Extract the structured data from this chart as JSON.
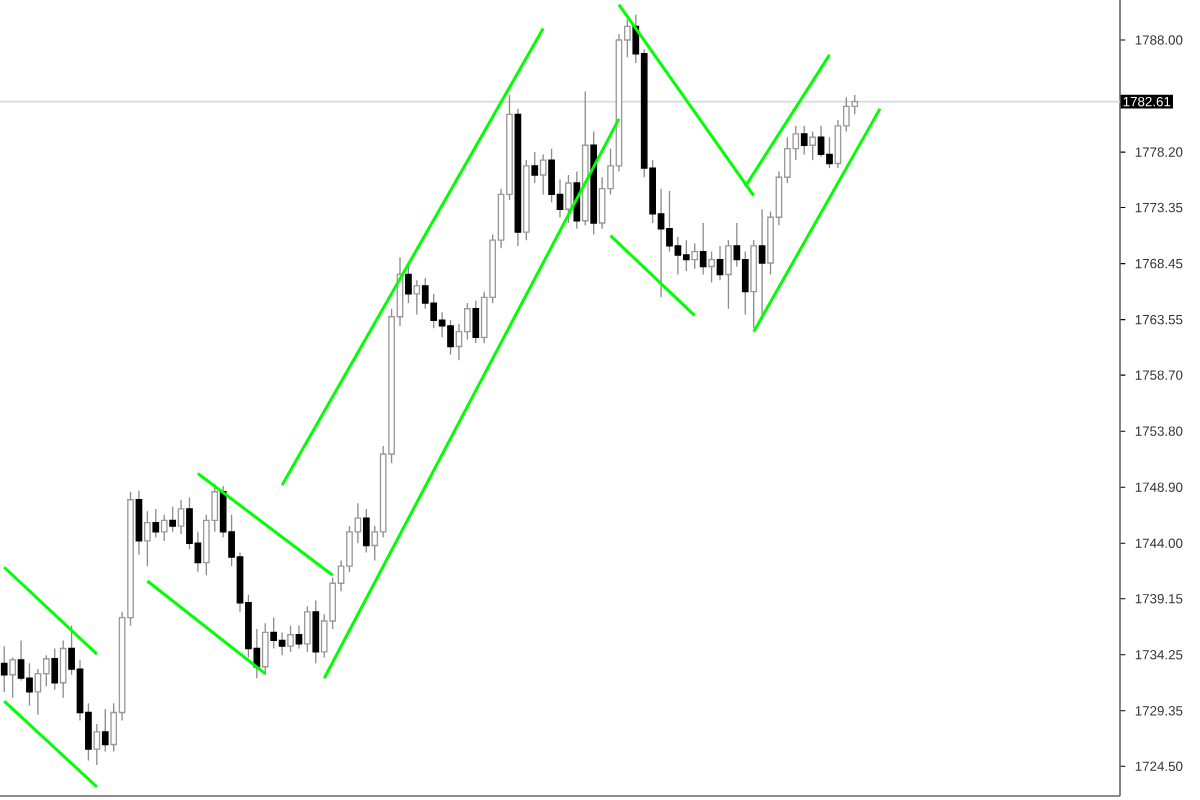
{
  "chart_data": {
    "type": "candlestick",
    "categories": [
      null,
      null,
      null,
      null,
      null,
      null,
      null,
      null,
      null,
      null,
      null,
      null,
      null,
      null,
      null,
      null,
      null,
      null,
      null,
      null,
      null,
      null,
      null,
      null,
      null,
      null,
      null,
      null,
      null,
      null,
      null,
      null,
      null,
      null,
      null,
      null,
      null,
      null,
      null,
      null,
      null,
      null,
      null,
      null,
      null,
      null,
      null,
      null,
      null,
      null,
      null,
      null,
      null,
      null,
      null,
      null,
      null,
      null,
      null,
      null,
      null,
      null,
      null,
      null,
      null,
      null,
      null,
      null,
      null,
      null,
      null,
      null,
      null,
      null,
      null,
      null,
      null,
      null,
      null,
      null,
      null,
      null,
      null,
      null,
      null,
      null,
      null,
      null,
      null,
      null,
      null,
      null,
      null,
      null,
      null,
      null,
      null,
      null,
      null,
      null,
      null,
      null,
      null,
      null,
      null,
      null,
      null,
      null,
      null,
      null,
      null,
      null,
      null,
      null,
      null,
      null,
      null,
      null,
      null,
      null,
      null,
      null,
      null,
      null,
      null,
      null,
      null,
      null,
      null,
      null,
      null,
      null,
      null
    ],
    "ohlc": [
      [
        1733.5,
        1735.0,
        1731.0,
        1732.5
      ],
      [
        1732.5,
        1734.0,
        1730.5,
        1733.8
      ],
      [
        1733.8,
        1735.5,
        1732.0,
        1732.2
      ],
      [
        1732.2,
        1733.5,
        1729.8,
        1731.0
      ],
      [
        1731.0,
        1733.0,
        1729.0,
        1732.6
      ],
      [
        1732.6,
        1734.2,
        1731.5,
        1733.9
      ],
      [
        1733.9,
        1734.8,
        1731.2,
        1731.8
      ],
      [
        1731.8,
        1735.5,
        1730.5,
        1734.8
      ],
      [
        1734.8,
        1736.8,
        1732.5,
        1733.0
      ],
      [
        1733.0,
        1733.8,
        1728.5,
        1729.2
      ],
      [
        1729.2,
        1730.0,
        1725.0,
        1726.0
      ],
      [
        1726.0,
        1728.2,
        1724.6,
        1727.5
      ],
      [
        1727.5,
        1729.5,
        1725.8,
        1726.4
      ],
      [
        1726.4,
        1730.0,
        1725.8,
        1729.2
      ],
      [
        1729.2,
        1738.0,
        1728.5,
        1737.5
      ],
      [
        1737.5,
        1748.5,
        1736.8,
        1747.8
      ],
      [
        1747.8,
        1748.6,
        1743.0,
        1744.2
      ],
      [
        1744.2,
        1746.8,
        1742.0,
        1745.8
      ],
      [
        1745.8,
        1747.0,
        1744.5,
        1745.0
      ],
      [
        1745.0,
        1746.5,
        1744.2,
        1746.0
      ],
      [
        1746.0,
        1747.2,
        1745.0,
        1745.5
      ],
      [
        1745.5,
        1747.8,
        1744.8,
        1747.0
      ],
      [
        1747.0,
        1748.0,
        1743.5,
        1744.0
      ],
      [
        1744.0,
        1745.0,
        1741.5,
        1742.3
      ],
      [
        1742.3,
        1746.5,
        1741.2,
        1746.0
      ],
      [
        1746.0,
        1749.2,
        1745.0,
        1748.5
      ],
      [
        1748.5,
        1749.0,
        1744.5,
        1745.0
      ],
      [
        1745.0,
        1746.5,
        1742.0,
        1742.8
      ],
      [
        1742.8,
        1743.2,
        1738.0,
        1738.8
      ],
      [
        1738.8,
        1739.5,
        1734.0,
        1734.8
      ],
      [
        1734.8,
        1736.5,
        1732.2,
        1733.2
      ],
      [
        1733.2,
        1737.0,
        1732.5,
        1736.2
      ],
      [
        1736.2,
        1737.5,
        1734.8,
        1735.5
      ],
      [
        1735.5,
        1736.2,
        1734.2,
        1735.0
      ],
      [
        1735.0,
        1736.8,
        1734.5,
        1736.0
      ],
      [
        1736.0,
        1736.8,
        1734.8,
        1735.2
      ],
      [
        1735.2,
        1738.5,
        1734.5,
        1738.0
      ],
      [
        1738.0,
        1739.0,
        1733.5,
        1734.5
      ],
      [
        1734.5,
        1737.8,
        1734.0,
        1737.2
      ],
      [
        1737.2,
        1741.0,
        1736.5,
        1740.5
      ],
      [
        1740.5,
        1742.5,
        1739.8,
        1742.0
      ],
      [
        1742.0,
        1745.5,
        1741.5,
        1745.0
      ],
      [
        1745.0,
        1747.5,
        1744.0,
        1746.2
      ],
      [
        1746.2,
        1747.0,
        1743.2,
        1743.8
      ],
      [
        1743.8,
        1745.5,
        1742.5,
        1745.0
      ],
      [
        1745.0,
        1752.5,
        1744.5,
        1751.8
      ],
      [
        1751.8,
        1764.5,
        1751.0,
        1763.8
      ],
      [
        1763.8,
        1769.0,
        1763.0,
        1767.5
      ],
      [
        1767.5,
        1768.5,
        1765.0,
        1765.8
      ],
      [
        1765.8,
        1767.0,
        1764.0,
        1766.5
      ],
      [
        1766.5,
        1767.2,
        1764.5,
        1765.0
      ],
      [
        1765.0,
        1765.8,
        1762.8,
        1763.5
      ],
      [
        1763.5,
        1764.2,
        1762.0,
        1763.0
      ],
      [
        1763.0,
        1763.5,
        1760.5,
        1761.2
      ],
      [
        1761.2,
        1763.2,
        1760.0,
        1762.5
      ],
      [
        1762.5,
        1765.0,
        1761.8,
        1764.5
      ],
      [
        1764.5,
        1765.2,
        1761.5,
        1762.0
      ],
      [
        1762.0,
        1766.0,
        1761.5,
        1765.5
      ],
      [
        1765.5,
        1771.0,
        1765.0,
        1770.5
      ],
      [
        1770.5,
        1775.0,
        1769.8,
        1774.5
      ],
      [
        1774.5,
        1783.2,
        1774.0,
        1781.5
      ],
      [
        1781.5,
        1782.0,
        1770.0,
        1771.2
      ],
      [
        1771.2,
        1777.5,
        1770.5,
        1777.0
      ],
      [
        1777.0,
        1778.2,
        1775.5,
        1776.2
      ],
      [
        1776.2,
        1778.0,
        1774.5,
        1777.5
      ],
      [
        1777.5,
        1778.5,
        1773.8,
        1774.5
      ],
      [
        1774.5,
        1775.8,
        1772.5,
        1773.2
      ],
      [
        1773.2,
        1776.2,
        1772.0,
        1775.5
      ],
      [
        1775.5,
        1776.5,
        1771.5,
        1772.2
      ],
      [
        1772.2,
        1783.5,
        1771.8,
        1778.8
      ],
      [
        1778.8,
        1780.0,
        1771.0,
        1772.0
      ],
      [
        1772.0,
        1776.0,
        1771.5,
        1775.0
      ],
      [
        1775.0,
        1778.5,
        1774.5,
        1777.0
      ],
      [
        1777.0,
        1788.5,
        1776.5,
        1788.0
      ],
      [
        1788.0,
        1789.8,
        1786.5,
        1789.2
      ],
      [
        1789.2,
        1790.2,
        1786.0,
        1786.8
      ],
      [
        1786.8,
        1787.2,
        1776.0,
        1776.8
      ],
      [
        1776.8,
        1777.5,
        1772.0,
        1772.8
      ],
      [
        1772.8,
        1775.0,
        1765.5,
        1771.5
      ],
      [
        1771.5,
        1774.8,
        1769.5,
        1770.0
      ],
      [
        1770.0,
        1770.8,
        1767.5,
        1769.2
      ],
      [
        1769.2,
        1770.5,
        1767.8,
        1768.8
      ],
      [
        1768.8,
        1770.2,
        1768.0,
        1769.5
      ],
      [
        1769.5,
        1772.0,
        1767.5,
        1768.2
      ],
      [
        1768.2,
        1769.5,
        1766.8,
        1768.8
      ],
      [
        1768.8,
        1770.0,
        1767.0,
        1767.5
      ],
      [
        1767.5,
        1770.5,
        1764.5,
        1770.0
      ],
      [
        1770.0,
        1772.0,
        1768.2,
        1768.8
      ],
      [
        1768.8,
        1769.5,
        1764.0,
        1766.0
      ],
      [
        1766.0,
        1770.5,
        1762.8,
        1770.0
      ],
      [
        1770.0,
        1773.2,
        1763.5,
        1768.5
      ],
      [
        1768.5,
        1773.0,
        1767.5,
        1772.5
      ],
      [
        1772.5,
        1776.5,
        1771.8,
        1776.0
      ],
      [
        1776.0,
        1779.5,
        1775.5,
        1778.5
      ],
      [
        1778.5,
        1780.5,
        1777.5,
        1779.8
      ],
      [
        1779.8,
        1780.5,
        1778.0,
        1778.8
      ],
      [
        1778.8,
        1780.0,
        1777.5,
        1779.5
      ],
      [
        1779.5,
        1780.5,
        1777.8,
        1778.0
      ],
      [
        1778.0,
        1779.5,
        1776.8,
        1777.2
      ],
      [
        1777.2,
        1781.0,
        1776.8,
        1780.5
      ],
      [
        1780.5,
        1783.0,
        1780.0,
        1782.2
      ],
      [
        1782.2,
        1783.2,
        1781.5,
        1782.61
      ],
      null,
      null,
      null,
      null,
      null,
      null,
      null,
      null,
      null,
      null,
      null,
      null,
      null,
      null,
      null,
      null,
      null,
      null,
      null,
      null,
      null,
      null,
      null,
      null,
      null,
      null,
      null,
      null,
      null,
      null,
      null
    ],
    "series": [
      {
        "type": "line",
        "color": "#00ff00",
        "values": [
          1741.9,
          null,
          null,
          null,
          null,
          null,
          null,
          null,
          null,
          null,
          null,
          1734.3,
          null,
          null,
          null,
          null,
          null,
          null,
          null,
          null,
          null,
          null,
          null,
          null,
          null,
          null,
          null,
          null,
          null,
          null,
          null,
          null,
          null,
          null,
          null,
          null,
          null,
          null,
          null,
          null,
          null,
          null,
          null,
          null,
          null,
          null,
          null,
          null,
          null,
          null,
          null,
          null,
          null,
          null,
          null,
          null,
          null,
          null,
          null,
          null,
          null,
          null,
          null,
          null,
          null,
          null,
          null,
          null,
          null,
          null,
          null,
          null,
          null,
          null,
          null,
          null,
          null,
          null,
          null,
          null,
          null,
          null,
          null,
          null,
          null,
          null,
          null,
          null,
          null,
          null,
          null,
          null,
          null,
          null,
          null,
          null,
          null,
          null,
          null,
          null,
          null,
          null,
          null,
          null,
          null,
          null,
          null,
          null,
          null,
          null,
          null,
          null,
          null,
          null,
          null,
          null,
          null,
          null,
          null,
          null,
          null,
          null,
          null,
          null,
          null,
          null,
          null,
          null,
          null,
          null,
          null,
          null,
          null
        ]
      },
      {
        "type": "line",
        "color": "#00ff00",
        "values": [
          1730.2,
          null,
          null,
          null,
          null,
          null,
          null,
          null,
          null,
          null,
          null,
          1722.7,
          null,
          null,
          null,
          null,
          null,
          null,
          null,
          null,
          null,
          null,
          null,
          null,
          null,
          null,
          null,
          null,
          null,
          null,
          null,
          null,
          null,
          null,
          null,
          null,
          null,
          null,
          null,
          null,
          null,
          null,
          null,
          null,
          null,
          null,
          null,
          null,
          null,
          null,
          null,
          null,
          null,
          null,
          null,
          null,
          null,
          null,
          null,
          null,
          null,
          null,
          null,
          null,
          null,
          null,
          null,
          null,
          null,
          null,
          null,
          null,
          null,
          null,
          null,
          null,
          null,
          null,
          null,
          null,
          null,
          null,
          null,
          null,
          null,
          null,
          null,
          null,
          null,
          null,
          null,
          null,
          null,
          null,
          null,
          null,
          null,
          null,
          null,
          null,
          null,
          null,
          null,
          null,
          null,
          null,
          null,
          null,
          null,
          null,
          null,
          null,
          null,
          null,
          null,
          null,
          null,
          null,
          null,
          null,
          null,
          null,
          null,
          null,
          null,
          null,
          null,
          null,
          null,
          null,
          null,
          null,
          null
        ]
      },
      {
        "type": "line",
        "color": "#00ff00",
        "values": [
          null,
          null,
          null,
          null,
          null,
          null,
          null,
          null,
          null,
          null,
          null,
          null,
          null,
          null,
          null,
          null,
          null,
          null,
          null,
          null,
          null,
          null,
          null,
          1750.1,
          null,
          null,
          null,
          null,
          null,
          null,
          null,
          null,
          null,
          null,
          null,
          null,
          null,
          null,
          null,
          1741.2,
          null,
          null,
          null,
          null,
          null,
          null,
          null,
          null,
          null,
          null,
          null,
          null,
          null,
          null,
          null,
          null,
          null,
          null,
          null,
          null,
          null,
          null,
          null,
          null,
          null,
          null,
          null,
          null,
          null,
          null,
          null,
          null,
          null,
          null,
          null,
          null,
          null,
          null,
          null,
          null,
          null,
          null,
          null,
          null,
          null,
          null,
          null,
          null,
          null,
          null,
          null,
          null,
          null,
          null,
          null,
          null,
          null,
          null,
          null,
          null,
          null,
          null,
          null,
          null,
          null,
          null,
          null,
          null,
          null,
          null,
          null,
          null,
          null,
          null,
          null,
          null,
          null,
          null,
          null,
          null,
          null,
          null,
          null,
          null,
          null,
          null,
          null,
          null,
          null,
          null,
          null,
          null,
          null
        ]
      },
      {
        "type": "line",
        "color": "#00ff00",
        "values": [
          null,
          null,
          null,
          null,
          null,
          null,
          null,
          null,
          null,
          null,
          null,
          null,
          null,
          null,
          null,
          null,
          null,
          1740.7,
          null,
          null,
          null,
          null,
          null,
          null,
          null,
          null,
          null,
          null,
          null,
          null,
          null,
          1732.6,
          null,
          null,
          null,
          null,
          null,
          null,
          null,
          null,
          null,
          null,
          null,
          null,
          null,
          null,
          null,
          null,
          null,
          null,
          null,
          null,
          null,
          null,
          null,
          null,
          null,
          null,
          null,
          null,
          null,
          null,
          null,
          null,
          null,
          null,
          null,
          null,
          null,
          null,
          null,
          null,
          null,
          null,
          null,
          null,
          null,
          null,
          null,
          null,
          null,
          null,
          null,
          null,
          null,
          null,
          null,
          null,
          null,
          null,
          null,
          null,
          null,
          null,
          null,
          null,
          null,
          null,
          null,
          null,
          null,
          null,
          null,
          null,
          null,
          null,
          null,
          null,
          null,
          null,
          null,
          null,
          null,
          null,
          null,
          null,
          null,
          null,
          null,
          null,
          null,
          null,
          null,
          null,
          null,
          null,
          null,
          null,
          null,
          null,
          null,
          null,
          null
        ]
      },
      {
        "type": "line",
        "color": "#00ff00",
        "values": [
          null,
          null,
          null,
          null,
          null,
          null,
          null,
          null,
          null,
          null,
          null,
          null,
          null,
          null,
          null,
          null,
          null,
          null,
          null,
          null,
          null,
          null,
          null,
          null,
          null,
          null,
          null,
          null,
          null,
          null,
          null,
          null,
          null,
          1749.1,
          null,
          null,
          null,
          null,
          null,
          null,
          null,
          null,
          null,
          null,
          null,
          null,
          null,
          null,
          null,
          null,
          null,
          null,
          null,
          null,
          null,
          null,
          null,
          null,
          null,
          null,
          null,
          null,
          null,
          null,
          1789.0,
          null,
          null,
          null,
          null,
          null,
          null,
          null,
          null,
          null,
          null,
          null,
          null,
          null,
          null,
          null,
          null,
          null,
          null,
          null,
          null,
          null,
          null,
          null,
          null,
          null,
          null,
          null,
          null,
          null,
          null,
          null,
          null,
          null,
          null,
          null,
          null,
          null,
          null,
          null,
          null,
          null,
          null,
          null,
          null,
          null,
          null,
          null,
          null,
          null,
          null,
          null,
          null,
          null,
          null,
          null,
          null,
          null,
          null,
          null,
          null,
          null,
          null,
          null,
          null,
          null,
          null,
          null,
          null
        ]
      },
      {
        "type": "line",
        "color": "#00ff00",
        "values": [
          null,
          null,
          null,
          null,
          null,
          null,
          null,
          null,
          null,
          null,
          null,
          null,
          null,
          null,
          null,
          null,
          null,
          null,
          null,
          null,
          null,
          null,
          null,
          null,
          null,
          null,
          null,
          null,
          null,
          null,
          null,
          null,
          null,
          null,
          null,
          null,
          null,
          null,
          1732.2,
          null,
          null,
          null,
          null,
          null,
          null,
          null,
          null,
          null,
          null,
          null,
          null,
          null,
          null,
          null,
          null,
          null,
          null,
          null,
          null,
          null,
          null,
          null,
          null,
          null,
          null,
          null,
          null,
          null,
          null,
          null,
          null,
          null,
          null,
          1781.1,
          null,
          null,
          null,
          null,
          null,
          null,
          null,
          null,
          null,
          null,
          null,
          null,
          null,
          null,
          null,
          null,
          null,
          null,
          null,
          null,
          null,
          null,
          null,
          null,
          null,
          null,
          null,
          null,
          null,
          null,
          null,
          null,
          null,
          null,
          null,
          null,
          null,
          null,
          null,
          null,
          null,
          null,
          null,
          null,
          null,
          null,
          null,
          null,
          null,
          null,
          null,
          null,
          null,
          null,
          null,
          null,
          null,
          null,
          null
        ]
      },
      {
        "type": "line",
        "color": "#00ff00",
        "values": [
          null,
          null,
          null,
          null,
          null,
          null,
          null,
          null,
          null,
          null,
          null,
          null,
          null,
          null,
          null,
          null,
          null,
          null,
          null,
          null,
          null,
          null,
          null,
          null,
          null,
          null,
          null,
          null,
          null,
          null,
          null,
          null,
          null,
          null,
          null,
          null,
          null,
          null,
          null,
          null,
          null,
          null,
          null,
          null,
          null,
          null,
          null,
          null,
          null,
          null,
          null,
          null,
          null,
          null,
          null,
          null,
          null,
          null,
          null,
          null,
          null,
          null,
          null,
          null,
          null,
          null,
          null,
          null,
          null,
          null,
          null,
          null,
          null,
          1791.1,
          null,
          null,
          null,
          null,
          null,
          null,
          null,
          null,
          null,
          null,
          null,
          null,
          null,
          null,
          null,
          1774.4,
          null,
          null,
          null,
          null,
          null,
          null,
          null,
          null,
          null,
          null,
          null,
          null,
          null,
          null,
          null,
          null,
          null,
          null,
          null,
          null,
          null,
          null,
          null,
          null,
          null,
          null,
          null,
          null,
          null,
          null,
          null,
          null,
          null,
          null,
          null,
          null,
          null,
          null,
          null,
          null,
          null,
          null,
          null
        ]
      },
      {
        "type": "line",
        "color": "#00ff00",
        "values": [
          null,
          null,
          null,
          null,
          null,
          null,
          null,
          null,
          null,
          null,
          null,
          null,
          null,
          null,
          null,
          null,
          null,
          null,
          null,
          null,
          null,
          null,
          null,
          null,
          null,
          null,
          null,
          null,
          null,
          null,
          null,
          null,
          null,
          null,
          null,
          null,
          null,
          null,
          null,
          null,
          null,
          null,
          null,
          null,
          null,
          null,
          null,
          null,
          null,
          null,
          null,
          null,
          null,
          null,
          null,
          null,
          null,
          null,
          null,
          null,
          null,
          null,
          null,
          null,
          null,
          null,
          null,
          null,
          null,
          null,
          null,
          null,
          1770.9,
          null,
          null,
          null,
          null,
          null,
          null,
          null,
          null,
          null,
          1763.9,
          null,
          null,
          null,
          null,
          null,
          null,
          null,
          null,
          null,
          null,
          null,
          null,
          null,
          null,
          null,
          null,
          null,
          null,
          null,
          null,
          null,
          null,
          null,
          null,
          null,
          null,
          null,
          null,
          null,
          null,
          null,
          null,
          null,
          null,
          null,
          null,
          null,
          null,
          null,
          null,
          null,
          null,
          null,
          null,
          null,
          null,
          null,
          null,
          null,
          null
        ]
      },
      {
        "type": "line",
        "color": "#00ff00",
        "values": [
          null,
          null,
          null,
          null,
          null,
          null,
          null,
          null,
          null,
          null,
          null,
          null,
          null,
          null,
          null,
          null,
          null,
          null,
          null,
          null,
          null,
          null,
          null,
          null,
          null,
          null,
          null,
          null,
          null,
          null,
          null,
          null,
          null,
          null,
          null,
          null,
          null,
          null,
          null,
          null,
          null,
          null,
          null,
          null,
          null,
          null,
          null,
          null,
          null,
          null,
          null,
          null,
          null,
          null,
          null,
          null,
          null,
          null,
          null,
          null,
          null,
          null,
          null,
          null,
          null,
          null,
          null,
          null,
          null,
          null,
          null,
          null,
          null,
          null,
          null,
          null,
          null,
          null,
          null,
          null,
          null,
          null,
          null,
          null,
          null,
          null,
          null,
          null,
          1775.2,
          null,
          null,
          null,
          null,
          null,
          null,
          null,
          null,
          null,
          1786.7,
          null,
          null,
          null,
          null,
          null,
          null,
          null,
          null,
          null,
          null,
          null,
          null,
          null,
          null,
          null,
          null,
          null,
          null,
          null,
          null,
          null,
          null,
          null,
          null,
          null,
          null,
          null,
          null,
          null,
          null,
          null,
          null,
          null,
          null
        ]
      },
      {
        "type": "line",
        "color": "#00ff00",
        "values": [
          null,
          null,
          null,
          null,
          null,
          null,
          null,
          null,
          null,
          null,
          null,
          null,
          null,
          null,
          null,
          null,
          null,
          null,
          null,
          null,
          null,
          null,
          null,
          null,
          null,
          null,
          null,
          null,
          null,
          null,
          null,
          null,
          null,
          null,
          null,
          null,
          null,
          null,
          null,
          null,
          null,
          null,
          null,
          null,
          null,
          null,
          null,
          null,
          null,
          null,
          null,
          null,
          null,
          null,
          null,
          null,
          null,
          null,
          null,
          null,
          null,
          null,
          null,
          null,
          null,
          null,
          null,
          null,
          null,
          null,
          null,
          null,
          null,
          null,
          null,
          null,
          null,
          null,
          null,
          null,
          null,
          null,
          null,
          null,
          null,
          null,
          null,
          null,
          null,
          1762.5,
          null,
          null,
          null,
          null,
          null,
          null,
          null,
          null,
          null,
          null,
          null,
          null,
          null,
          null,
          1782.0,
          null,
          null,
          null,
          null,
          null,
          null,
          null,
          null,
          null,
          null,
          null,
          null,
          null,
          null,
          null,
          null,
          null,
          null,
          null,
          null,
          null,
          null,
          null,
          null,
          null,
          null,
          null,
          null
        ]
      }
    ],
    "ylim": [
      1721.9,
      1791.5
    ],
    "yticks": [
      {
        "value": 1788.0,
        "label": "1788.00"
      },
      {
        "value": 1778.2,
        "label": "1778.20"
      },
      {
        "value": 1773.35,
        "label": "1773.35"
      },
      {
        "value": 1768.45,
        "label": "1768.45"
      },
      {
        "value": 1763.55,
        "label": "1763.55"
      },
      {
        "value": 1758.7,
        "label": "1758.70"
      },
      {
        "value": 1753.8,
        "label": "1753.80"
      },
      {
        "value": 1748.9,
        "label": "1748.90"
      },
      {
        "value": 1744.0,
        "label": "1744.00"
      },
      {
        "value": 1739.15,
        "label": "1739.15"
      },
      {
        "value": 1734.25,
        "label": "1734.25"
      },
      {
        "value": 1729.35,
        "label": "1729.35"
      },
      {
        "value": 1724.5,
        "label": "1724.50"
      }
    ],
    "ref_lines": [
      {
        "axis": "y",
        "value": 1782.61,
        "label": "1782.61",
        "color": "#d9d9d9"
      }
    ],
    "tick_labels": "y",
    "grid": false
  }
}
